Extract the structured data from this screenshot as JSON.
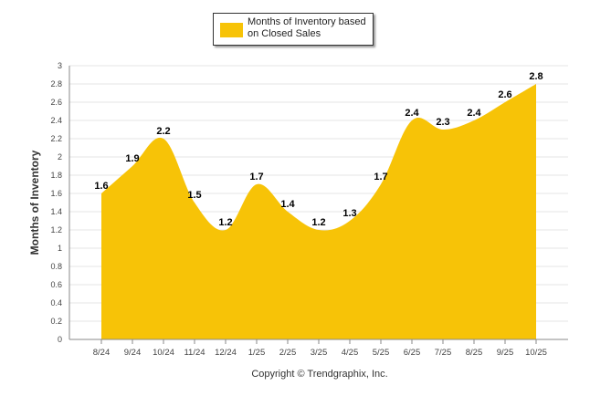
{
  "chart_data": {
    "type": "area",
    "categories": [
      "8/24",
      "9/24",
      "10/24",
      "11/24",
      "12/24",
      "1/25",
      "2/25",
      "3/25",
      "4/25",
      "5/25",
      "6/25",
      "7/25",
      "8/25",
      "9/25",
      "10/25"
    ],
    "series": [
      {
        "name": "Months of Inventory based on Closed Sales",
        "values": [
          1.6,
          1.9,
          2.2,
          1.5,
          1.2,
          1.7,
          1.4,
          1.2,
          1.3,
          1.7,
          2.4,
          2.3,
          2.4,
          2.6,
          2.8
        ],
        "data_labels": [
          "1.6",
          "1.9",
          "2.2",
          "1.5",
          "1.2",
          "1.7",
          "1.4",
          "1.2",
          "1.3",
          "1.7",
          "2.4",
          "2.3",
          "2.4",
          "2.6",
          "2.8"
        ]
      }
    ],
    "ylim": [
      0,
      3
    ],
    "yticks": [
      0,
      0.2,
      0.4,
      0.6,
      0.8,
      1,
      1.2,
      1.4,
      1.6,
      1.8,
      2,
      2.2,
      2.4,
      2.6,
      2.8,
      3
    ],
    "ytick_labels": [
      "0",
      "0.2",
      "0.4",
      "0.6",
      "0.8",
      "1",
      "1.2",
      "1.4",
      "1.6",
      "1.8",
      "2",
      "2.2",
      "2.4",
      "2.6",
      "2.8",
      "3"
    ],
    "ylabel": "Months of Inventory",
    "xlabel": "",
    "legend": "top-center",
    "grid": true
  },
  "colors": {
    "area": "#f7c307",
    "grid": "#e6e6e6",
    "axis": "#888888"
  },
  "legend_label": "Months of Inventory based on Closed Sales",
  "footer": {
    "copyright": "Copyright © Trendgraphix, Inc."
  }
}
